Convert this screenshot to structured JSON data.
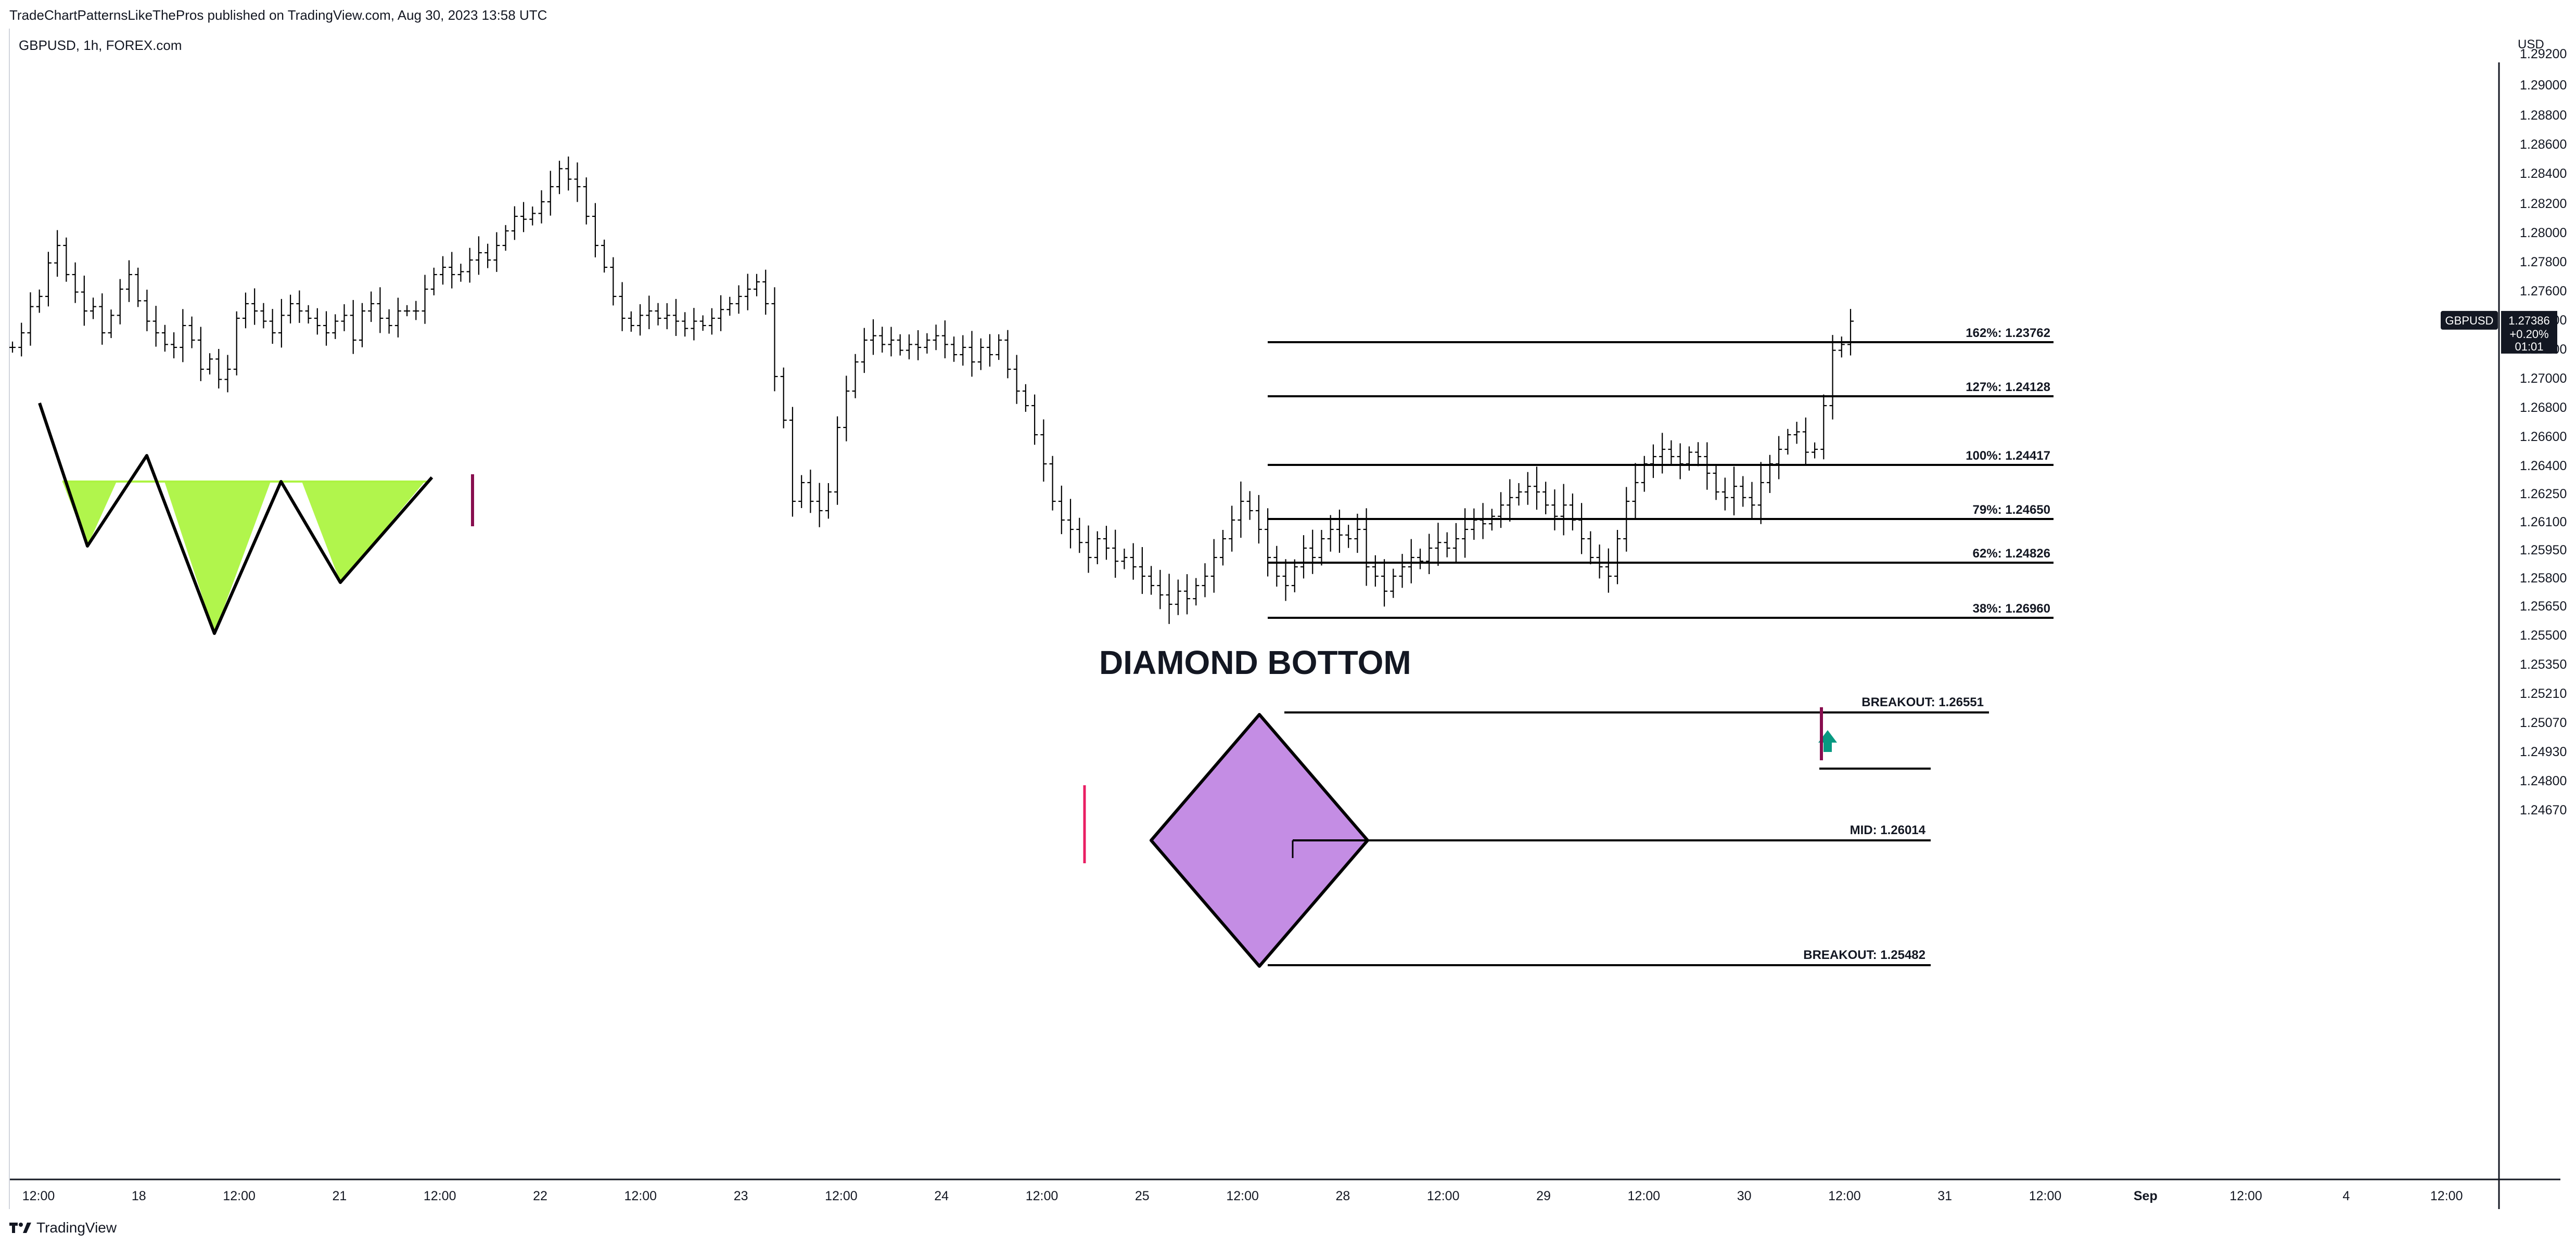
{
  "header": {
    "publisher_line": "TradeChartPatternsLikeThePros published on TradingView.com, Aug 30, 2023 13:58 UTC",
    "symbol_line": "GBPUSD, 1h, FOREX.com",
    "currency": "USD"
  },
  "footer": {
    "brand": "TradingView",
    "logo_icon": "tradingview-logo-icon"
  },
  "chart_data": {
    "type": "ohlc-bar",
    "symbol": "GBPUSD",
    "interval": "1h",
    "y_ticks": [
      "1.29200",
      "1.29000",
      "1.28800",
      "1.28600",
      "1.28400",
      "1.28200",
      "1.28000",
      "1.27800",
      "1.27600",
      "1.27400",
      "1.27200",
      "1.27000",
      "1.26800",
      "1.26600",
      "1.26400",
      "1.26250",
      "1.26100",
      "1.25950",
      "1.25800",
      "1.25650",
      "1.25500",
      "1.25350",
      "1.25210",
      "1.25070",
      "1.24930",
      "1.24800",
      "1.24670"
    ],
    "x_ticks": [
      "12:00",
      "18",
      "12:00",
      "21",
      "12:00",
      "22",
      "12:00",
      "23",
      "12:00",
      "24",
      "12:00",
      "25",
      "12:00",
      "28",
      "12:00",
      "29",
      "12:00",
      "30",
      "12:00",
      "31",
      "12:00",
      "Sep",
      "12:00",
      "4",
      "12:00"
    ],
    "last_price": {
      "symbol": "GBPUSD",
      "price": "1.27386",
      "change": "+0.20%",
      "countdown": "01:01"
    },
    "closes": [
      1.272,
      1.273,
      1.2748,
      1.2755,
      1.2778,
      1.279,
      1.277,
      1.2758,
      1.2745,
      1.2748,
      1.273,
      1.2742,
      1.276,
      1.277,
      1.2752,
      1.2738,
      1.273,
      1.2722,
      1.272,
      1.2735,
      1.2725,
      1.2705,
      1.2712,
      1.2698,
      1.2705,
      1.274,
      1.275,
      1.2745,
      1.2738,
      1.273,
      1.2742,
      1.275,
      1.2745,
      1.274,
      1.2735,
      1.273,
      1.2738,
      1.2742,
      1.2725,
      1.2745,
      1.275,
      1.274,
      1.2735,
      1.2745,
      1.2745,
      1.2745,
      1.276,
      1.277,
      1.2775,
      1.277,
      1.2772,
      1.278,
      1.2785,
      1.278,
      1.279,
      1.28,
      1.281,
      1.2808,
      1.2812,
      1.282,
      1.283,
      1.2842,
      1.2835,
      1.283,
      1.281,
      1.279,
      1.2775,
      1.2755,
      1.274,
      1.2735,
      1.2742,
      1.2745,
      1.274,
      1.2742,
      1.2738,
      1.2733,
      1.2738,
      1.2735,
      1.274,
      1.2746,
      1.275,
      1.2755,
      1.276,
      1.2765,
      1.275,
      1.27,
      1.267,
      1.262,
      1.263,
      1.262,
      1.2615,
      1.2625,
      1.2665,
      1.269,
      1.271,
      1.2725,
      1.2728,
      1.2722,
      1.2725,
      1.2718,
      1.2722,
      1.272,
      1.2725,
      1.2728,
      1.2722,
      1.2715,
      1.272,
      1.271,
      1.272,
      1.2715,
      1.2725,
      1.2705,
      1.269,
      1.268,
      1.266,
      1.264,
      1.262,
      1.261,
      1.2605,
      1.2598,
      1.259,
      1.26,
      1.2595,
      1.2588,
      1.259,
      1.2585,
      1.258,
      1.2575,
      1.257,
      1.2565,
      1.2572,
      1.2568,
      1.2575,
      1.258,
      1.259,
      1.26,
      1.261,
      1.262,
      1.2615,
      1.2605,
      1.259,
      1.258,
      1.2575,
      1.2585,
      1.2595,
      1.259,
      1.26,
      1.2605,
      1.2602,
      1.26,
      1.2605,
      1.2585,
      1.258,
      1.2572,
      1.258,
      1.2585,
      1.259,
      1.2588,
      1.2595,
      1.2598,
      1.2595,
      1.26,
      1.2605,
      1.261,
      1.2608,
      1.2612,
      1.2618,
      1.2622,
      1.2625,
      1.2628,
      1.2625,
      1.2618,
      1.2612,
      1.2618,
      1.261,
      1.26,
      1.259,
      1.2585,
      1.258,
      1.26,
      1.262,
      1.263,
      1.264,
      1.2645,
      1.265,
      1.2645,
      1.264,
      1.2648,
      1.2645,
      1.2635,
      1.2625,
      1.2622,
      1.2628,
      1.2622,
      1.2618,
      1.263,
      1.264,
      1.265,
      1.266,
      1.2662,
      1.2648,
      1.265,
      1.268,
      1.2718,
      1.2722,
      1.2738
    ],
    "patterns": [
      {
        "kind": "triple-bottom",
        "fill": "#adf442",
        "outline": "#000000"
      },
      {
        "kind": "diamond",
        "fill": "#c48de4",
        "outline": "#000000"
      }
    ],
    "annotations": [
      {
        "text": "DIAMOND BOTTOM",
        "style": "title"
      },
      {
        "text": "BREAKOUT: 1.26551"
      },
      {
        "text": "MID: 1.26014"
      },
      {
        "text": "BREAKOUT: 1.25482"
      },
      {
        "text": "38%: 1.26960"
      },
      {
        "text": "62%: 1.24826"
      },
      {
        "text": "79%: 1.24650"
      },
      {
        "text": "100%: 1.24417"
      },
      {
        "text": "127%: 1.24128"
      },
      {
        "text": "162%: 1.23762"
      }
    ],
    "signals": [
      {
        "kind": "up-arrow",
        "color": "#089981"
      },
      {
        "kind": "marker",
        "color": "#880e4f"
      },
      {
        "kind": "marker",
        "color": "#e91e63"
      }
    ],
    "bar_color": "#000000",
    "grid": false
  }
}
